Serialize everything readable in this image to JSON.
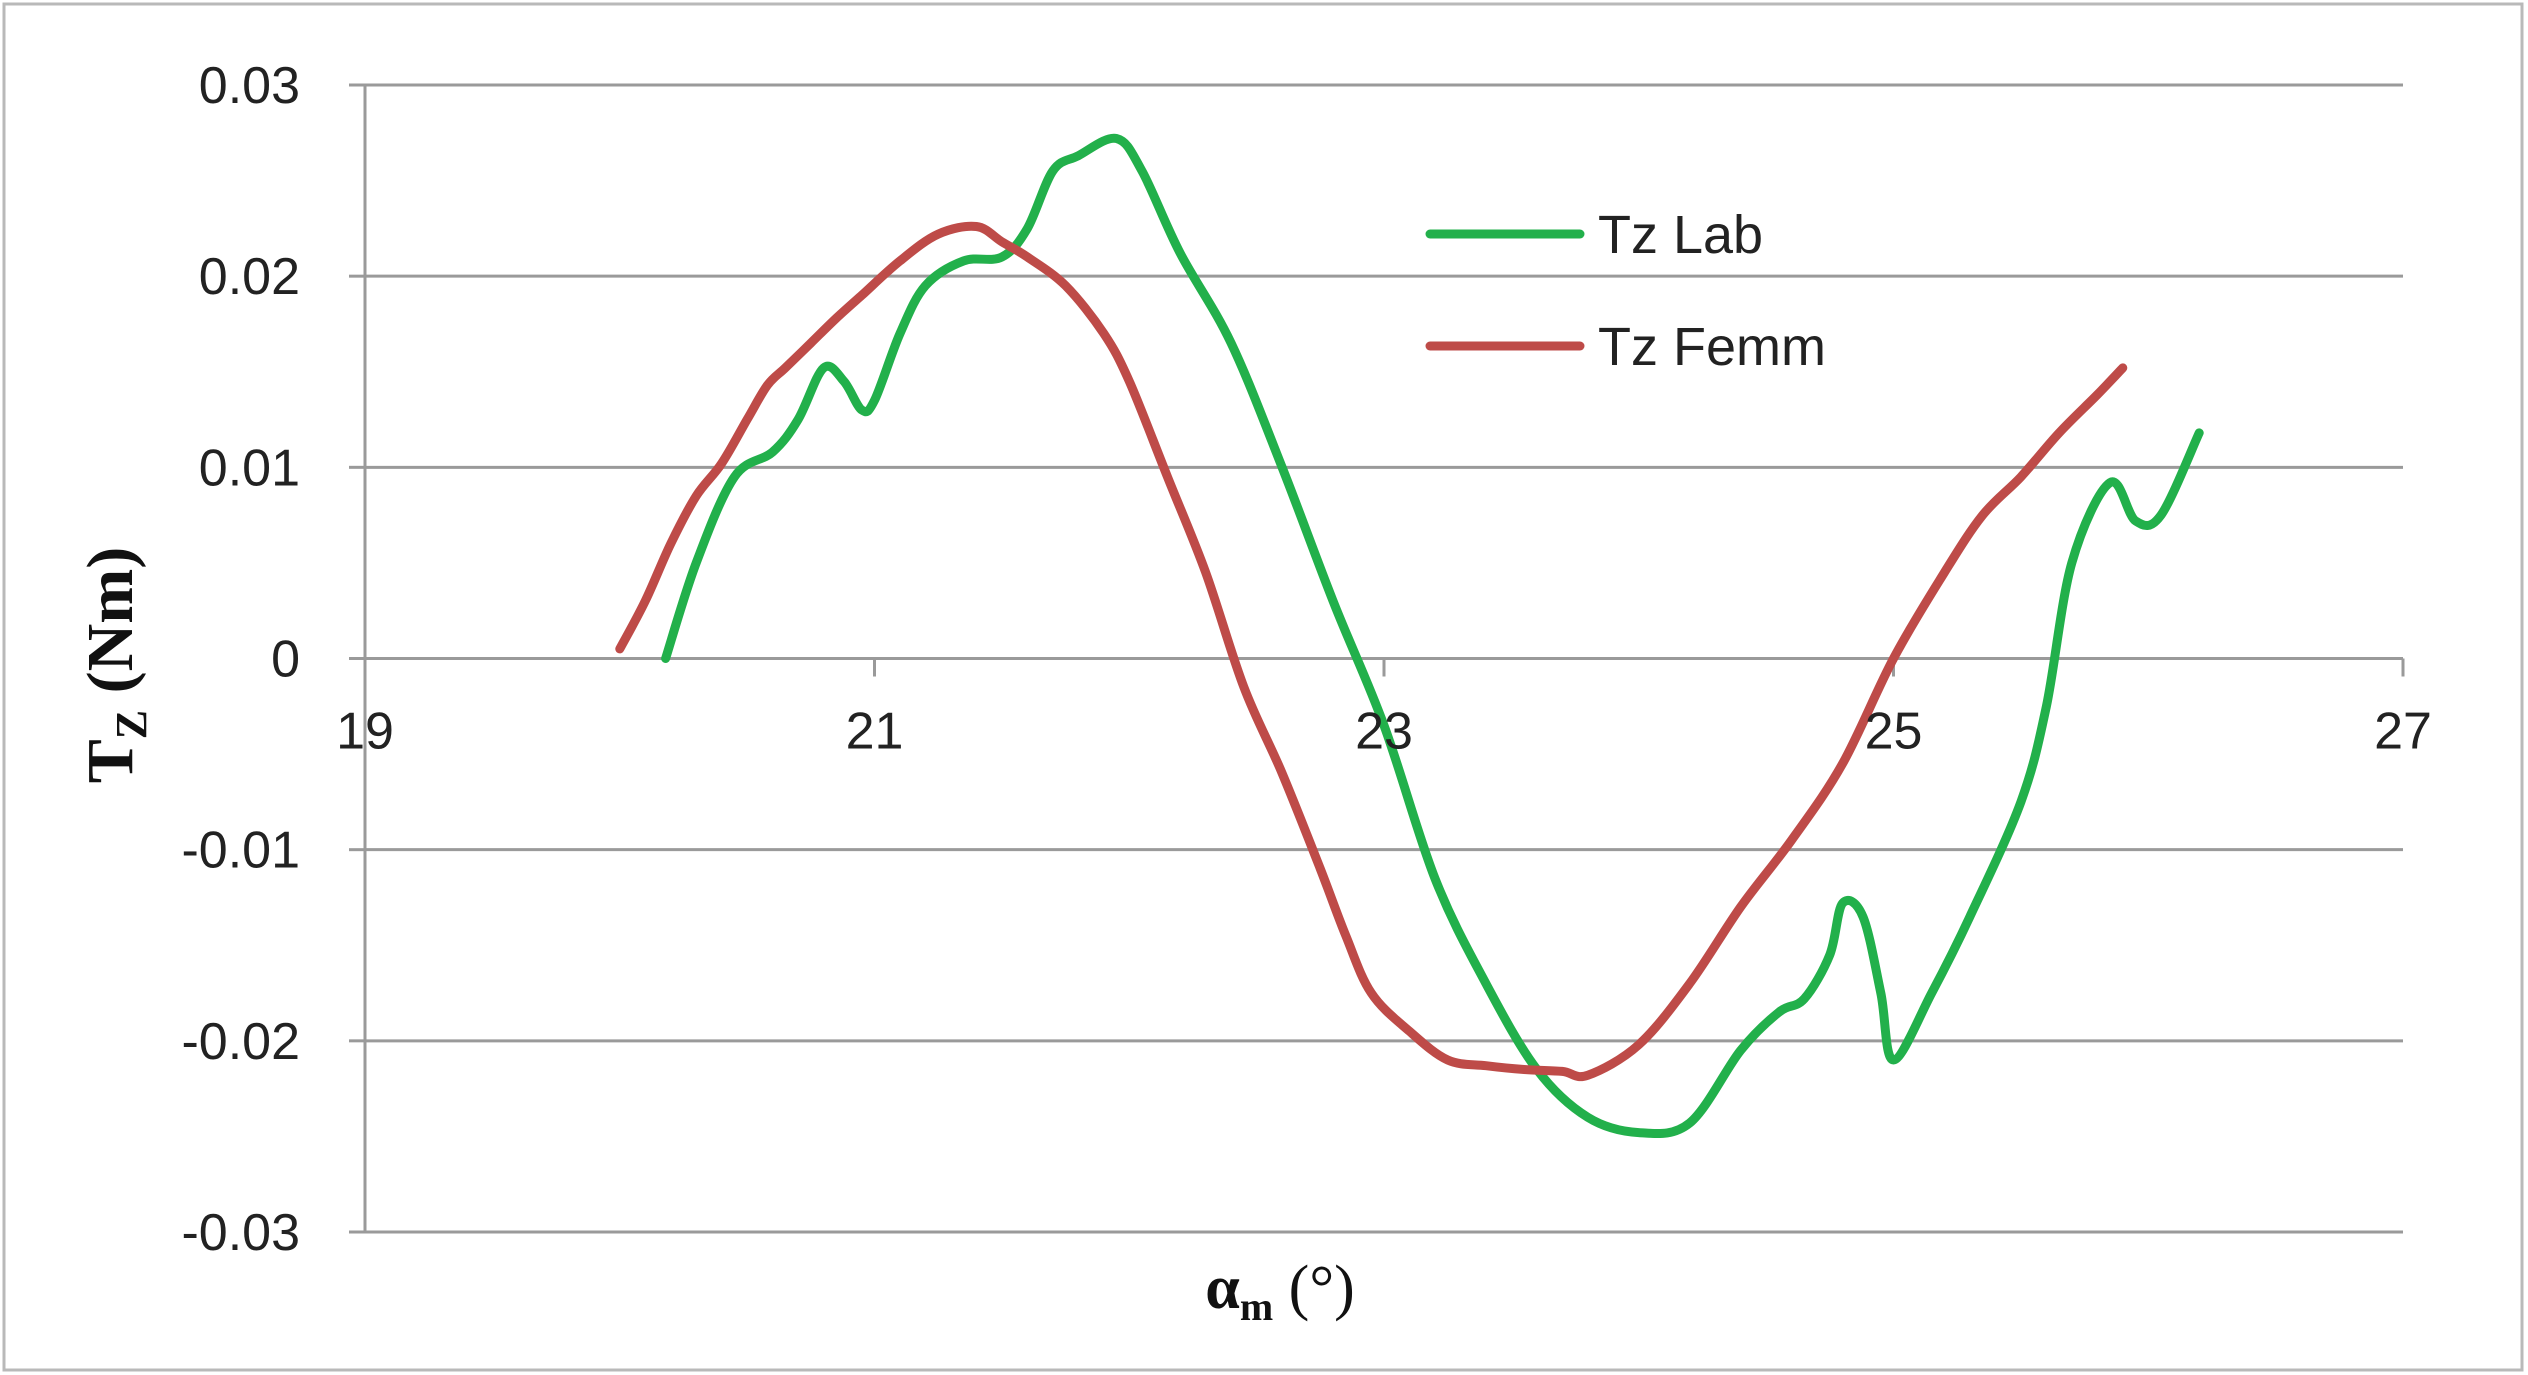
{
  "chart_data": {
    "type": "line",
    "xlabel": "αm (°)",
    "xlabel_parts": {
      "main": "α",
      "sub": "m",
      "unit": " (°)"
    },
    "ylabel": "TZ (Nm)",
    "ylabel_parts": {
      "main": "T",
      "sub": "Z",
      "unit": " (Nm)"
    },
    "xlim": [
      19,
      27
    ],
    "ylim": [
      -0.03,
      0.03
    ],
    "x_ticks": [
      19,
      21,
      23,
      25,
      27
    ],
    "y_ticks": [
      0.03,
      0.02,
      0.01,
      0,
      -0.01,
      -0.02,
      -0.03
    ],
    "x_tick_labels": [
      "19",
      "21",
      "23",
      "25",
      "27"
    ],
    "y_tick_labels": [
      "0.03",
      "0.02",
      "0.01",
      "0",
      "-0.01",
      "-0.02",
      "-0.03"
    ],
    "grid": "horizontal",
    "legend_position": "upper-middle",
    "series": [
      {
        "name": "Tz Lab",
        "color": "#22b04b",
        "x": [
          20.18,
          20.3,
          20.45,
          20.6,
          20.7,
          20.8,
          20.88,
          20.95,
          21.0,
          21.1,
          21.2,
          21.35,
          21.5,
          21.6,
          21.7,
          21.8,
          21.95,
          22.05,
          22.2,
          22.4,
          22.6,
          22.8,
          23.0,
          23.2,
          23.4,
          23.6,
          23.8,
          24.0,
          24.2,
          24.4,
          24.55,
          24.65,
          24.75,
          24.8,
          24.88,
          24.95,
          25.0,
          25.15,
          25.3,
          25.5,
          25.6,
          25.7,
          25.85,
          25.95,
          26.05,
          26.2
        ],
        "y": [
          0.0,
          0.005,
          0.0095,
          0.0108,
          0.0125,
          0.0152,
          0.0145,
          0.013,
          0.0135,
          0.017,
          0.0195,
          0.0208,
          0.021,
          0.0225,
          0.0255,
          0.0263,
          0.0272,
          0.0255,
          0.0212,
          0.0165,
          0.01,
          0.003,
          -0.0035,
          -0.0115,
          -0.017,
          -0.0215,
          -0.024,
          -0.0248,
          -0.0243,
          -0.0205,
          -0.0185,
          -0.0178,
          -0.0155,
          -0.0128,
          -0.0135,
          -0.0175,
          -0.021,
          -0.0175,
          -0.0135,
          -0.0075,
          -0.0025,
          0.005,
          0.0092,
          0.0072,
          0.0075,
          0.0118
        ]
      },
      {
        "name": "Tz Femm",
        "color": "#be4b48",
        "x": [
          20.0,
          20.1,
          20.2,
          20.3,
          20.4,
          20.5,
          20.58,
          20.65,
          20.75,
          20.85,
          20.95,
          21.1,
          21.25,
          21.4,
          21.5,
          21.6,
          21.75,
          21.9,
          22.0,
          22.15,
          22.3,
          22.45,
          22.6,
          22.75,
          22.85,
          22.95,
          23.1,
          23.25,
          23.4,
          23.55,
          23.7,
          23.8,
          24.0,
          24.2,
          24.4,
          24.6,
          24.8,
          25.0,
          25.2,
          25.35,
          25.5,
          25.65,
          25.8,
          25.9
        ],
        "y": [
          0.0005,
          0.003,
          0.006,
          0.0085,
          0.0102,
          0.0125,
          0.0143,
          0.0152,
          0.0165,
          0.0178,
          0.019,
          0.0208,
          0.0222,
          0.0226,
          0.0218,
          0.021,
          0.0195,
          0.017,
          0.0145,
          0.0095,
          0.0045,
          -0.0015,
          -0.006,
          -0.011,
          -0.0145,
          -0.0175,
          -0.0195,
          -0.021,
          -0.0213,
          -0.0215,
          -0.0216,
          -0.0218,
          -0.0202,
          -0.017,
          -0.013,
          -0.0095,
          -0.0055,
          0.0,
          0.0045,
          0.0075,
          0.0095,
          0.0118,
          0.0138,
          0.0152
        ]
      }
    ]
  }
}
